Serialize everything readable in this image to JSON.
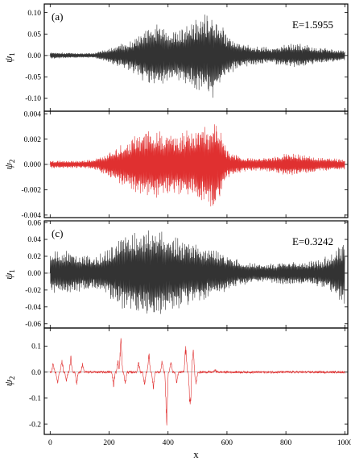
{
  "chart_data": [
    {
      "type": "line",
      "panel_label": "(a)",
      "annotation": "E=1.5955",
      "ylabel": "ψ1",
      "ylim": [
        -0.13,
        0.12
      ],
      "yticks": [
        -0.1,
        -0.05,
        0.0,
        0.05,
        0.1
      ],
      "ytick_labels": [
        "-0.10",
        "-0.05",
        "0.00",
        "0.05",
        "0.10"
      ],
      "xlim": [
        -20,
        1010
      ],
      "color": "#333333",
      "series": [
        {
          "envelope_x": [
            0,
            50,
            100,
            150,
            200,
            250,
            300,
            330,
            360,
            400,
            430,
            460,
            500,
            530,
            560,
            600,
            650,
            700,
            750,
            800,
            850,
            900,
            950,
            1000
          ],
          "envelope_y": [
            0.008,
            0.007,
            0.006,
            0.006,
            0.018,
            0.03,
            0.05,
            0.07,
            0.08,
            0.065,
            0.055,
            0.075,
            0.09,
            0.1,
            0.105,
            0.05,
            0.028,
            0.022,
            0.02,
            0.026,
            0.03,
            0.02,
            0.016,
            0.012
          ]
        }
      ]
    },
    {
      "type": "line",
      "ylabel": "ψ2",
      "ylim": [
        -0.0042,
        0.0042
      ],
      "yticks": [
        -0.004,
        -0.002,
        0.0,
        0.002,
        0.004
      ],
      "ytick_labels": [
        "-0.004",
        "-0.002",
        "0.000",
        "0.002",
        "0.004"
      ],
      "xlim": [
        -20,
        1010
      ],
      "color": "#e03030",
      "series": [
        {
          "envelope_x": [
            0,
            50,
            100,
            150,
            200,
            250,
            300,
            350,
            400,
            450,
            500,
            530,
            560,
            600,
            650,
            700,
            750,
            800,
            850,
            900,
            950,
            1000
          ],
          "envelope_y": [
            0.0003,
            0.0003,
            0.0003,
            0.0004,
            0.001,
            0.0018,
            0.0025,
            0.0028,
            0.0025,
            0.0026,
            0.003,
            0.0034,
            0.0038,
            0.0012,
            0.0006,
            0.0005,
            0.0006,
            0.0009,
            0.0008,
            0.0006,
            0.0005,
            0.0004
          ]
        }
      ]
    },
    {
      "type": "line",
      "panel_label": "(c)",
      "annotation": "E=0.3242",
      "ylabel": "ψ1",
      "ylim": [
        -0.065,
        0.062
      ],
      "yticks": [
        -0.06,
        -0.04,
        -0.02,
        0.0,
        0.02,
        0.04,
        0.06
      ],
      "ytick_labels": [
        "-0.06",
        "-0.04",
        "-0.02",
        "0.00",
        "0.02",
        "0.04",
        "0.06"
      ],
      "xlim": [
        -20,
        1010
      ],
      "color": "#333333",
      "series": [
        {
          "envelope_x": [
            0,
            50,
            100,
            150,
            200,
            250,
            300,
            350,
            400,
            450,
            500,
            550,
            600,
            650,
            700,
            750,
            800,
            850,
            900,
            950,
            1000
          ],
          "envelope_y": [
            0.025,
            0.028,
            0.022,
            0.02,
            0.03,
            0.045,
            0.05,
            0.055,
            0.048,
            0.04,
            0.035,
            0.03,
            0.022,
            0.015,
            0.012,
            0.012,
            0.015,
            0.014,
            0.015,
            0.022,
            0.04
          ]
        }
      ]
    },
    {
      "type": "line",
      "ylabel": "ψ2",
      "ylim": [
        -0.24,
        0.17
      ],
      "yticks": [
        -0.2,
        -0.1,
        0.0,
        0.1
      ],
      "ytick_labels": [
        "-0.2",
        "-0.1",
        "0.0",
        "0.1"
      ],
      "xlim": [
        -20,
        1010
      ],
      "xticks": [
        0,
        200,
        400,
        600,
        800,
        1000
      ],
      "xtick_labels": [
        "0",
        "200",
        "400",
        "600",
        "800",
        "1000"
      ],
      "xlabel": "x",
      "color": "#e03030",
      "series": [
        {
          "spikes_x": [
            10,
            25,
            40,
            55,
            70,
            90,
            110,
            215,
            230,
            240,
            255,
            300,
            320,
            335,
            350,
            380,
            395,
            410,
            430,
            460,
            475,
            485,
            495,
            560
          ],
          "spikes_y": [
            0.04,
            -0.05,
            0.06,
            -0.04,
            0.07,
            -0.05,
            0.04,
            -0.06,
            0.05,
            0.15,
            -0.05,
            0.05,
            -0.06,
            0.08,
            -0.07,
            0.05,
            -0.23,
            0.05,
            -0.05,
            0.12,
            -0.19,
            0.1,
            -0.05,
            0.01
          ]
        }
      ]
    }
  ]
}
